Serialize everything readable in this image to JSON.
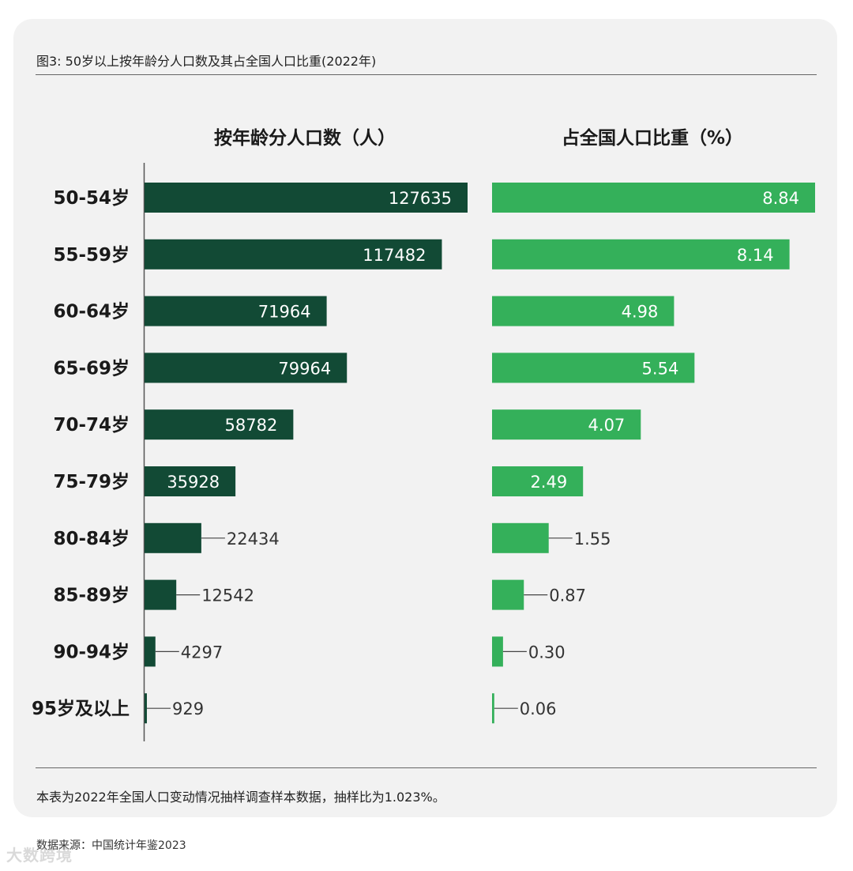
{
  "figure_title": "图3: 50岁以上按年龄分人口数及其占全国人口比重(2022年)",
  "footnote": "本表为2022年全国人口变动情况抽样调查样本数据，抽样比为1.023%。",
  "source": "数据来源：中国统计年鉴2023",
  "watermark": "大数跨境",
  "colors": {
    "population_bar": "#124a35",
    "share_bar": "#34b05a",
    "card_background": "#f2f2f2"
  },
  "chart_data": [
    {
      "type": "bar",
      "orientation": "horizontal",
      "title": "按年龄分人口数（人）",
      "categories": [
        "50-54岁",
        "55-59岁",
        "60-64岁",
        "65-69岁",
        "70-74岁",
        "75-79岁",
        "80-84岁",
        "85-89岁",
        "90-94岁",
        "95岁及以上"
      ],
      "values": [
        127635,
        117482,
        71964,
        79964,
        58782,
        35928,
        22434,
        12542,
        4297,
        929
      ],
      "value_labels": [
        "127635",
        "117482",
        "71964",
        "79964",
        "58782",
        "35928",
        "22434",
        "12542",
        "4297",
        "929"
      ],
      "xlim": [
        0,
        127635
      ],
      "grid": false,
      "legend": "none"
    },
    {
      "type": "bar",
      "orientation": "horizontal",
      "title": "占全国人口比重（%）",
      "categories": [
        "50-54岁",
        "55-59岁",
        "60-64岁",
        "65-69岁",
        "70-74岁",
        "75-79岁",
        "80-84岁",
        "85-89岁",
        "90-94岁",
        "95岁及以上"
      ],
      "values": [
        8.84,
        8.14,
        4.98,
        5.54,
        4.07,
        2.49,
        1.55,
        0.87,
        0.3,
        0.06
      ],
      "value_labels": [
        "8.84",
        "8.14",
        "4.98",
        "5.54",
        "4.07",
        "2.49",
        "1.55",
        "0.87",
        "0.30",
        "0.06"
      ],
      "xlim": [
        0,
        8.84
      ],
      "grid": false,
      "legend": "none"
    }
  ]
}
